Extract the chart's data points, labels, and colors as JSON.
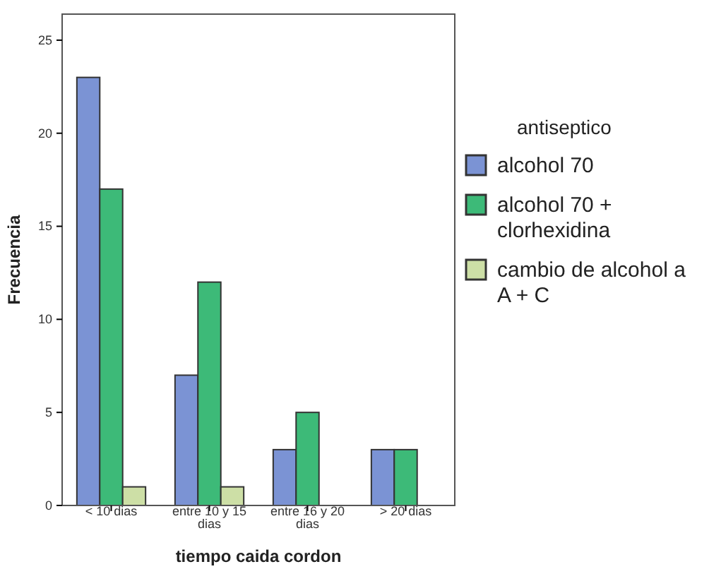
{
  "chart_data": {
    "type": "bar",
    "xlabel": "tiempo caida cordon",
    "ylabel": "Frecuencia",
    "legend_title": "antiseptico",
    "legend": "right",
    "categories": [
      "< 10 dias",
      "entre 10 y 15 dias",
      "entre 16 y 20 dias",
      "> 20 dias"
    ],
    "series": [
      {
        "name": "alcohol 70",
        "color": "#7b93d4",
        "values": [
          23,
          7,
          3,
          3
        ]
      },
      {
        "name": "alcohol 70 + clorhexidina",
        "color": "#3dba78",
        "values": [
          17,
          12,
          5,
          3
        ]
      },
      {
        "name": "cambio de alcohol a A + C",
        "color": "#cddfa6",
        "values": [
          1,
          1,
          null,
          null
        ]
      }
    ],
    "ylim": [
      0,
      26.4
    ],
    "yticks": [
      0,
      5,
      10,
      15,
      20,
      25
    ],
    "grid": false
  }
}
